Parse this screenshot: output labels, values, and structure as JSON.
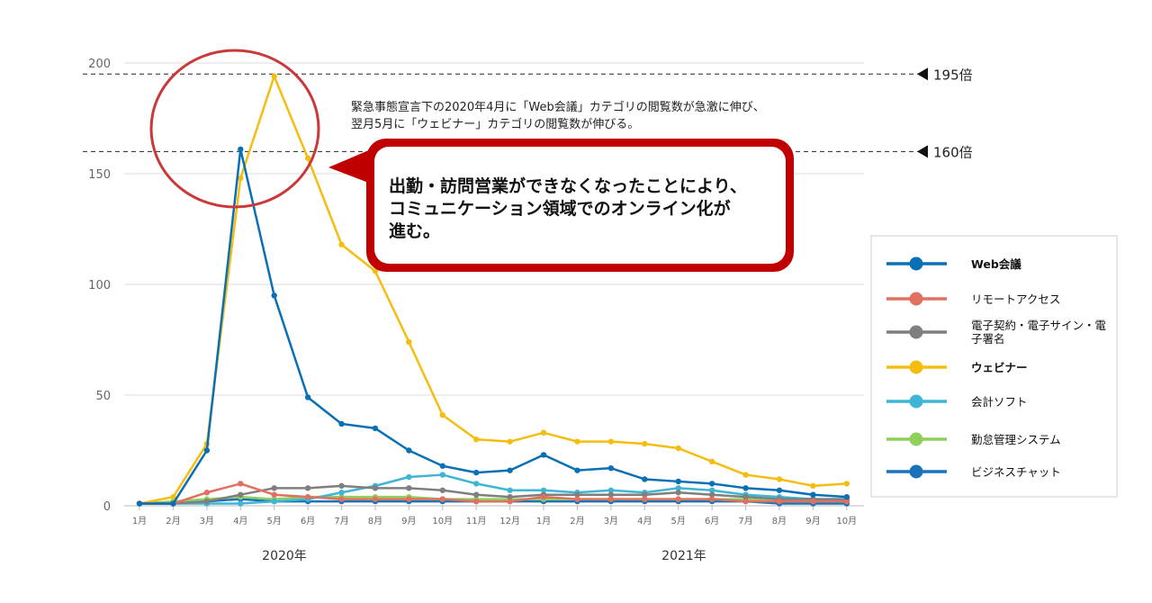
{
  "chart_data": {
    "type": "line",
    "x": [
      "1月",
      "2月",
      "3月",
      "4月",
      "5月",
      "6月",
      "7月",
      "8月",
      "9月",
      "10月",
      "11月",
      "12月",
      "1月",
      "2月",
      "3月",
      "4月",
      "5月",
      "6月",
      "7月",
      "8月",
      "9月",
      "10月"
    ],
    "ylim": [
      0,
      200
    ],
    "yticks": [
      "0",
      "50",
      "100",
      "150",
      "200"
    ],
    "grid": true,
    "year_labels": [
      "2020年",
      "2021年"
    ],
    "reference_lines": [
      {
        "value": 195,
        "label": "195倍"
      },
      {
        "value": 160,
        "label": "160倍"
      }
    ],
    "annotation": {
      "line1": "緊急事態宣言下の2020年4月に「Web会議」カテゴリの閲覧数が急激に伸び、",
      "line2": "翌月5月に「ウェビナー」カテゴリの閲覧数が伸びる。"
    },
    "callout": {
      "line1": "出勤・訪問営業ができなくなったことにより、",
      "line2": "コミュニケーション領域でのオンライン化が",
      "line3": "進む。"
    },
    "legend_position": "right",
    "series": [
      {
        "name": "Web会議",
        "color": "#0a70b5",
        "values": [
          1,
          1,
          25,
          161,
          95,
          49,
          37,
          35,
          25,
          18,
          15,
          16,
          23,
          16,
          17,
          12,
          11,
          10,
          8,
          7,
          5,
          4
        ]
      },
      {
        "name": "リモートアクセス",
        "color": "#e0705f",
        "values": [
          1,
          1,
          6,
          10,
          5,
          4,
          3,
          3,
          3,
          3,
          2,
          2,
          4,
          3,
          3,
          3,
          3,
          3,
          2,
          2,
          2,
          2
        ]
      },
      {
        "name": "電子契約・電子サイン・電子署名",
        "color": "#7f7f7f",
        "values": [
          1,
          1,
          2,
          5,
          8,
          8,
          9,
          8,
          8,
          7,
          5,
          4,
          5,
          5,
          5,
          5,
          6,
          5,
          4,
          3,
          3,
          3
        ]
      },
      {
        "name": "ウェビナー",
        "color": "#f5bd10",
        "values": [
          1,
          4,
          28,
          148,
          194,
          157,
          118,
          106,
          74,
          41,
          30,
          29,
          33,
          29,
          29,
          28,
          26,
          20,
          14,
          12,
          9,
          10
        ]
      },
      {
        "name": "会計ソフト",
        "color": "#3eb5d5",
        "values": [
          1,
          1,
          1,
          1,
          2,
          3,
          6,
          9,
          13,
          14,
          10,
          7,
          7,
          6,
          7,
          6,
          8,
          7,
          5,
          4,
          3,
          3
        ]
      },
      {
        "name": "勤怠管理システム",
        "color": "#8fd05a",
        "values": [
          1,
          2,
          3,
          4,
          3,
          4,
          4,
          4,
          4,
          3,
          3,
          3,
          3,
          3,
          3,
          3,
          3,
          3,
          3,
          2,
          2,
          2
        ]
      },
      {
        "name": "ビジネスチャット",
        "color": "#1a72b8",
        "values": [
          1,
          1,
          2,
          3,
          2,
          2,
          2,
          2,
          2,
          2,
          2,
          2,
          2,
          2,
          2,
          2,
          2,
          2,
          2,
          1,
          1,
          1
        ]
      }
    ]
  }
}
